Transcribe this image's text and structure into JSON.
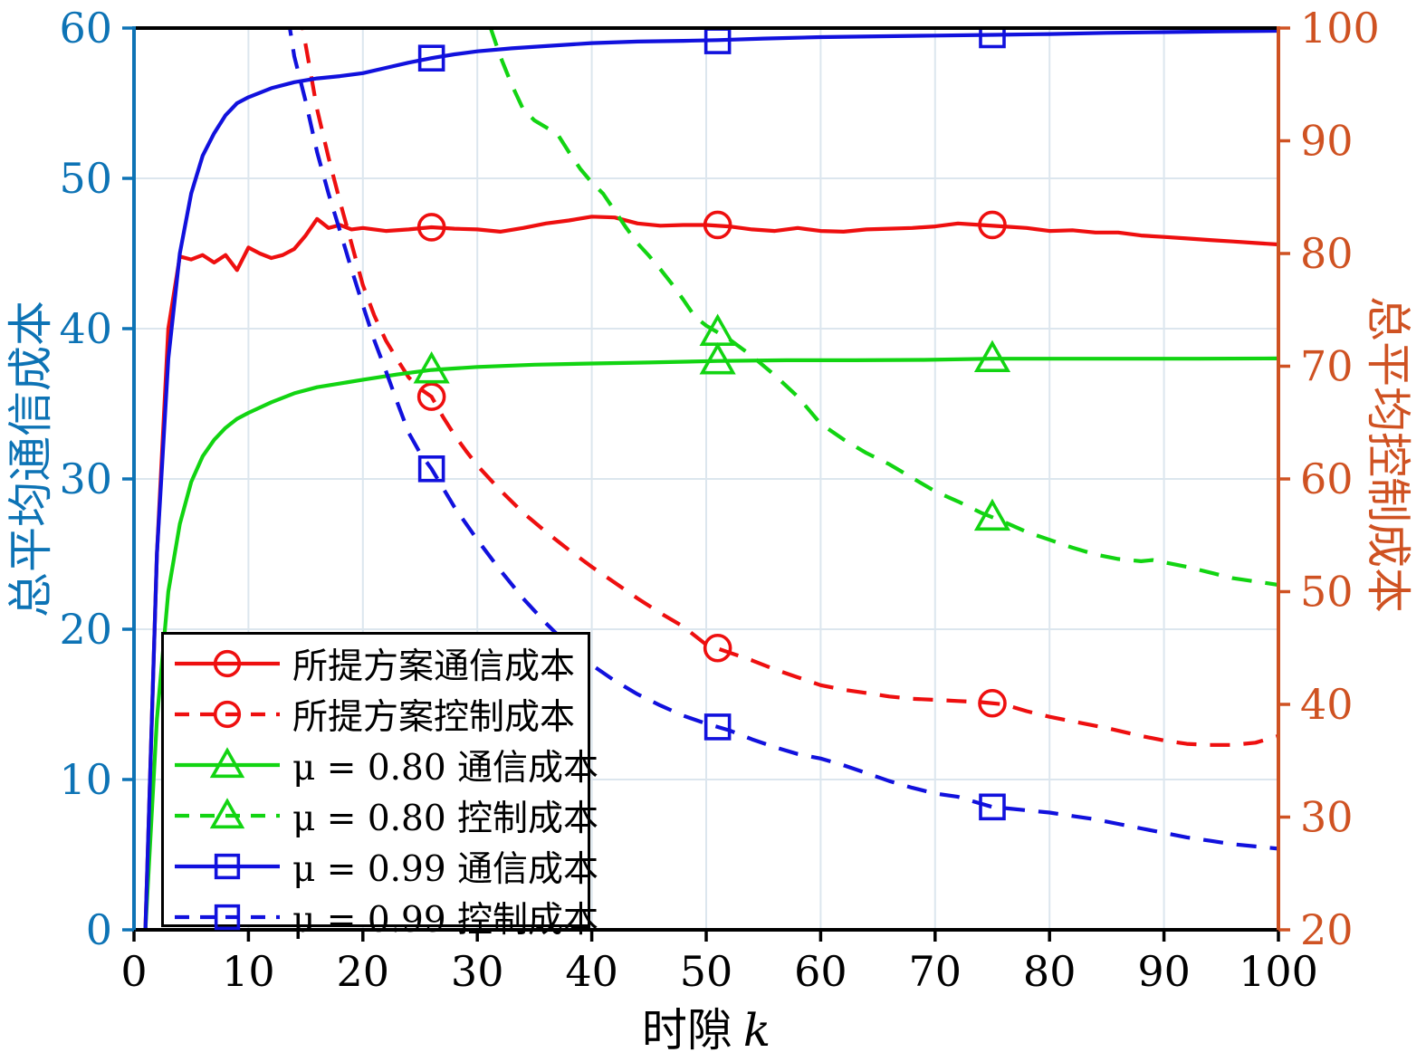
{
  "figure": {
    "x_axis": {
      "label_text": "时隙",
      "label_var": "k",
      "range": [
        0,
        100
      ],
      "ticks": [
        0,
        10,
        20,
        30,
        40,
        50,
        60,
        70,
        80,
        90,
        100
      ],
      "color": "#000000"
    },
    "y_left": {
      "label": "总平均通信成本",
      "range": [
        0,
        60
      ],
      "ticks": [
        0,
        10,
        20,
        30,
        40,
        50,
        60
      ],
      "color": "#0d73b5"
    },
    "y_right": {
      "label": "总平均控制成本",
      "range": [
        20,
        100
      ],
      "ticks": [
        20,
        30,
        40,
        50,
        60,
        70,
        80,
        90,
        100
      ],
      "color": "#cf5222"
    },
    "grid_color": "#dce6ee",
    "background": "#ffffff"
  },
  "chart_data": {
    "type": "line",
    "title": "",
    "xlabel": "时隙 k",
    "ylabel_left": "总平均通信成本",
    "ylabel_right": "总平均控制成本",
    "xlim": [
      0,
      100
    ],
    "ylim_left": [
      0,
      60
    ],
    "ylim_right": [
      20,
      100
    ],
    "grid": true,
    "legend_position": "bottom-left",
    "series": [
      {
        "name": "所提方案通信成本",
        "color": "#ee0f0f",
        "line_style": "solid",
        "marker": "circle",
        "axis": "left",
        "x": [
          1,
          2,
          3,
          4,
          5,
          6,
          7,
          8,
          9,
          10,
          11,
          12,
          13,
          14,
          15,
          16,
          17,
          18,
          19,
          20,
          22,
          24,
          26,
          28,
          30,
          32,
          34,
          36,
          38,
          40,
          42,
          44,
          46,
          48,
          50,
          52,
          54,
          56,
          58,
          60,
          62,
          64,
          66,
          68,
          70,
          72,
          74,
          76,
          78,
          80,
          82,
          84,
          86,
          88,
          90,
          92,
          94,
          96,
          98,
          100
        ],
        "y": [
          0,
          25,
          40,
          44.8,
          44.6,
          44.9,
          44.4,
          44.9,
          43.9,
          45.4,
          45.0,
          44.7,
          44.9,
          45.3,
          46.2,
          47.3,
          46.7,
          46.9,
          46.6,
          46.7,
          46.5,
          46.6,
          46.75,
          46.65,
          46.6,
          46.45,
          46.7,
          47.0,
          47.2,
          47.45,
          47.4,
          47.0,
          46.85,
          46.9,
          46.9,
          46.8,
          46.6,
          46.5,
          46.7,
          46.5,
          46.45,
          46.6,
          46.65,
          46.7,
          46.8,
          47.0,
          46.9,
          46.8,
          46.7,
          46.5,
          46.55,
          46.4,
          46.4,
          46.2,
          46.1,
          46.0,
          45.9,
          45.8,
          45.7,
          45.6
        ],
        "markers_at": [
          [
            26,
            46.75
          ],
          [
            51,
            46.9
          ],
          [
            75,
            46.9
          ]
        ]
      },
      {
        "name": "所提方案控制成本",
        "color": "#ee0f0f",
        "line_style": "dashed",
        "marker": "circle",
        "axis": "right",
        "x": [
          14,
          15,
          16,
          17,
          18,
          19,
          20,
          21,
          22,
          23,
          24,
          25,
          26,
          27,
          28,
          29,
          30,
          32,
          34,
          36,
          38,
          40,
          42,
          44,
          46,
          48,
          50,
          52,
          54,
          56,
          58,
          60,
          62,
          64,
          66,
          68,
          70,
          72,
          74,
          76,
          78,
          80,
          82,
          85,
          88,
          90,
          92,
          94,
          96,
          98,
          100
        ],
        "y": [
          104.5,
          98.5,
          92.8,
          88.5,
          84.6,
          80.9,
          77.2,
          74.5,
          72.3,
          70.6,
          69.0,
          68.0,
          67.3,
          65.5,
          63.9,
          62.5,
          61.2,
          59.0,
          57.0,
          55.3,
          53.7,
          52.2,
          50.8,
          49.4,
          48.1,
          46.9,
          45.3,
          44.6,
          43.9,
          43.1,
          42.4,
          41.7,
          41.3,
          41.0,
          40.7,
          40.5,
          40.4,
          40.3,
          40.2,
          40.0,
          39.4,
          38.9,
          38.5,
          37.9,
          37.2,
          36.8,
          36.5,
          36.4,
          36.4,
          36.6,
          37.2
        ],
        "markers_at": [
          [
            26,
            67.3
          ],
          [
            51,
            45.0
          ],
          [
            75,
            40.1
          ]
        ]
      },
      {
        "name": "μ = 0.80 通信成本",
        "color": "#12d412",
        "line_style": "solid",
        "marker": "triangle",
        "axis": "left",
        "x": [
          1,
          2,
          3,
          4,
          5,
          6,
          7,
          8,
          9,
          10,
          12,
          14,
          16,
          18,
          20,
          23,
          26,
          30,
          35,
          40,
          45,
          51,
          57,
          63,
          69,
          75,
          81,
          87,
          93,
          100
        ],
        "y": [
          0,
          14,
          22.5,
          27,
          29.8,
          31.5,
          32.6,
          33.4,
          34.0,
          34.4,
          35.1,
          35.7,
          36.1,
          36.35,
          36.6,
          36.95,
          37.25,
          37.45,
          37.6,
          37.68,
          37.75,
          37.85,
          37.9,
          37.9,
          37.92,
          38.0,
          38.0,
          38.0,
          38.0,
          38.02
        ],
        "markers_at": [
          [
            26,
            37.25
          ],
          [
            51,
            37.85
          ],
          [
            75,
            38.0
          ]
        ]
      },
      {
        "name": "μ = 0.80 控制成本",
        "color": "#12d412",
        "line_style": "dashed",
        "marker": "triangle",
        "axis": "right",
        "x": [
          30.5,
          31,
          32,
          33,
          34,
          35,
          36,
          37,
          38,
          39,
          40,
          41,
          42,
          43,
          44,
          45,
          46,
          47,
          48,
          49,
          50,
          51,
          52,
          54,
          56,
          58,
          60,
          62,
          64,
          66,
          68,
          70,
          72,
          74,
          75,
          76,
          78,
          80,
          82,
          84,
          86,
          88,
          89,
          90,
          92,
          94,
          96,
          98,
          100
        ],
        "y": [
          103,
          100.5,
          97.5,
          95.0,
          92.8,
          91.8,
          91.2,
          90.6,
          89.0,
          87.5,
          86.3,
          85.3,
          83.8,
          82.3,
          80.9,
          79.8,
          78.6,
          77.3,
          75.9,
          74.4,
          73.6,
          73.0,
          72.4,
          70.9,
          69.2,
          67.3,
          64.9,
          63.5,
          62.3,
          61.3,
          60.1,
          58.9,
          58.0,
          57.0,
          56.6,
          56.2,
          55.3,
          54.6,
          53.9,
          53.3,
          52.9,
          52.7,
          52.8,
          52.6,
          52.2,
          51.7,
          51.2,
          50.9,
          50.6
        ],
        "markers_at": [
          [
            51,
            73.0
          ],
          [
            75,
            56.6
          ]
        ]
      },
      {
        "name": "μ = 0.99 通信成本",
        "color": "#1111dd",
        "line_style": "solid",
        "marker": "square",
        "axis": "left",
        "x": [
          1,
          2,
          3,
          4,
          5,
          6,
          7,
          8,
          9,
          10,
          12,
          14,
          16,
          18,
          20,
          22,
          24,
          26,
          28,
          30,
          33,
          36,
          40,
          44,
          48,
          51,
          55,
          60,
          65,
          70,
          75,
          80,
          85,
          90,
          95,
          100
        ],
        "y": [
          0,
          25,
          38,
          45,
          49,
          51.5,
          53,
          54.2,
          55,
          55.4,
          56.0,
          56.4,
          56.65,
          56.8,
          57.0,
          57.35,
          57.7,
          58.0,
          58.25,
          58.45,
          58.65,
          58.8,
          59.0,
          59.1,
          59.15,
          59.2,
          59.3,
          59.4,
          59.45,
          59.5,
          59.55,
          59.6,
          59.68,
          59.73,
          59.78,
          59.82
        ],
        "markers_at": [
          [
            26,
            58.0
          ],
          [
            51,
            59.15
          ],
          [
            75,
            59.55
          ]
        ]
      },
      {
        "name": "μ = 0.99 控制成本",
        "color": "#1111dd",
        "line_style": "dashed",
        "marker": "square",
        "axis": "right",
        "x": [
          13,
          14,
          15,
          16,
          17,
          18,
          19,
          20,
          21,
          22,
          23,
          24,
          25,
          26,
          28,
          30,
          32,
          34,
          36,
          38,
          40,
          42,
          44,
          46,
          48,
          50,
          52,
          54,
          56,
          58,
          60,
          62,
          64,
          66,
          68,
          70,
          72,
          74,
          75,
          76,
          78,
          80,
          82,
          84,
          86,
          88,
          90,
          92,
          94,
          96,
          98,
          100
        ],
        "y": [
          104,
          97.5,
          93.5,
          89.0,
          85.3,
          82.0,
          78.6,
          75.4,
          72.3,
          69.6,
          66.8,
          64.1,
          62.3,
          60.9,
          57.5,
          54.6,
          51.9,
          49.4,
          47.2,
          45.2,
          43.5,
          42.1,
          40.9,
          39.9,
          39.0,
          38.3,
          37.7,
          36.9,
          36.2,
          35.6,
          35.2,
          34.6,
          33.9,
          33.2,
          32.6,
          32.1,
          31.8,
          31.2,
          30.9,
          30.8,
          30.6,
          30.4,
          30.1,
          29.8,
          29.4,
          29.0,
          28.6,
          28.2,
          27.9,
          27.6,
          27.4,
          27.2
        ],
        "markers_at": [
          [
            26,
            60.9
          ],
          [
            51,
            38.0
          ],
          [
            75,
            30.9
          ]
        ]
      }
    ]
  }
}
